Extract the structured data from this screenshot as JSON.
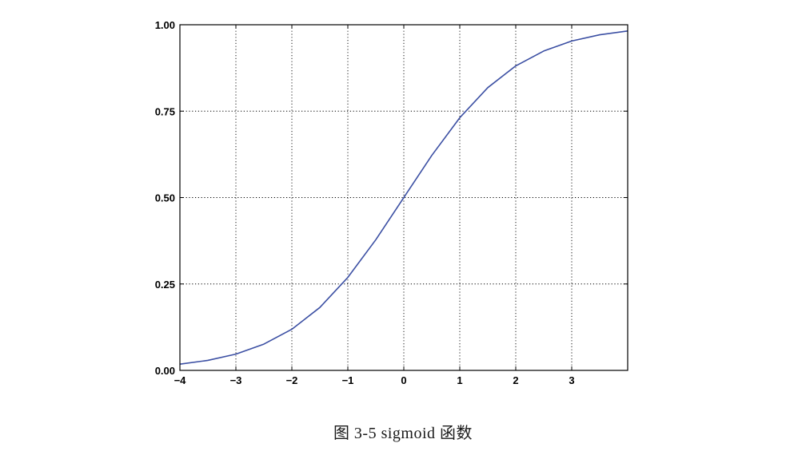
{
  "caption": "图 3-5    sigmoid 函数",
  "chart_data": {
    "type": "line",
    "function": "sigmoid",
    "xlim": [
      -4,
      4
    ],
    "ylim": [
      0,
      1
    ],
    "x_ticks": [
      -4,
      -3,
      -2,
      -1,
      0,
      1,
      2,
      3
    ],
    "x_tick_labels": [
      "−4",
      "−3",
      "−2",
      "−1",
      "0",
      "1",
      "2",
      "3"
    ],
    "y_ticks": [
      0,
      0.25,
      0.5,
      0.75,
      1
    ],
    "y_tick_labels": [
      "0.00",
      "0.25",
      "0.50",
      "0.75",
      "1.00"
    ],
    "grid": true,
    "title": "",
    "xlabel": "",
    "ylabel": "",
    "series": [
      {
        "color": "#3b4fa3",
        "x": [
          -4,
          -3.5,
          -3,
          -2.5,
          -2,
          -1.5,
          -1,
          -0.5,
          0,
          0.5,
          1,
          1.5,
          2,
          2.5,
          3,
          3.5,
          4
        ],
        "y": [
          0.018,
          0.029,
          0.047,
          0.076,
          0.119,
          0.182,
          0.269,
          0.378,
          0.5,
          0.622,
          0.731,
          0.818,
          0.881,
          0.924,
          0.953,
          0.971,
          0.982
        ]
      }
    ]
  }
}
